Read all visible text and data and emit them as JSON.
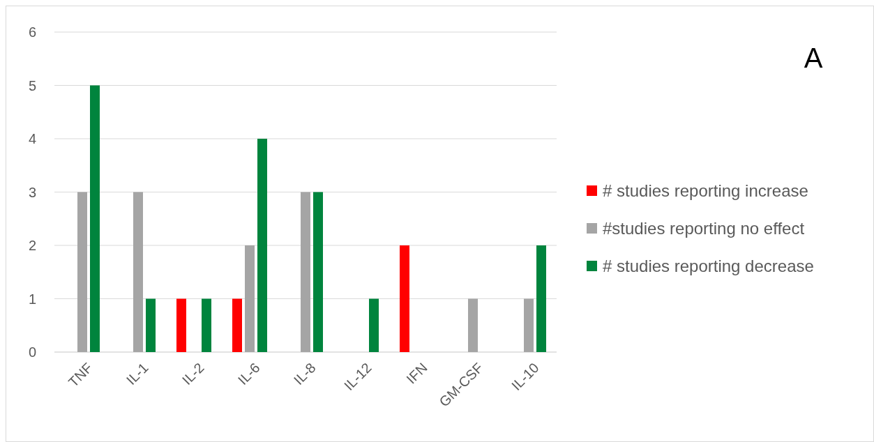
{
  "chart_data": {
    "type": "bar",
    "categories": [
      "TNF",
      "IL-1",
      "IL-2",
      "IL-6",
      "IL-8",
      "IL-12",
      "IFN",
      "GM-CSF",
      "IL-10"
    ],
    "series": [
      {
        "name": "# studies reporting increase",
        "color": "#ff0000",
        "values": [
          0,
          0,
          1,
          1,
          0,
          0,
          2,
          0,
          0
        ]
      },
      {
        "name": "#studies reporting no effect",
        "color": "#a5a5a5",
        "values": [
          3,
          3,
          0,
          2,
          3,
          0,
          0,
          1,
          1
        ]
      },
      {
        "name": "# studies reporting decrease",
        "color": "#00843d",
        "values": [
          5,
          1,
          1,
          4,
          3,
          1,
          0,
          0,
          2
        ]
      }
    ],
    "ylim": [
      0,
      6
    ],
    "yticks": [
      0,
      1,
      2,
      3,
      4,
      5,
      6
    ],
    "grid": "y",
    "legend": "right",
    "annotations": [
      "A"
    ]
  }
}
